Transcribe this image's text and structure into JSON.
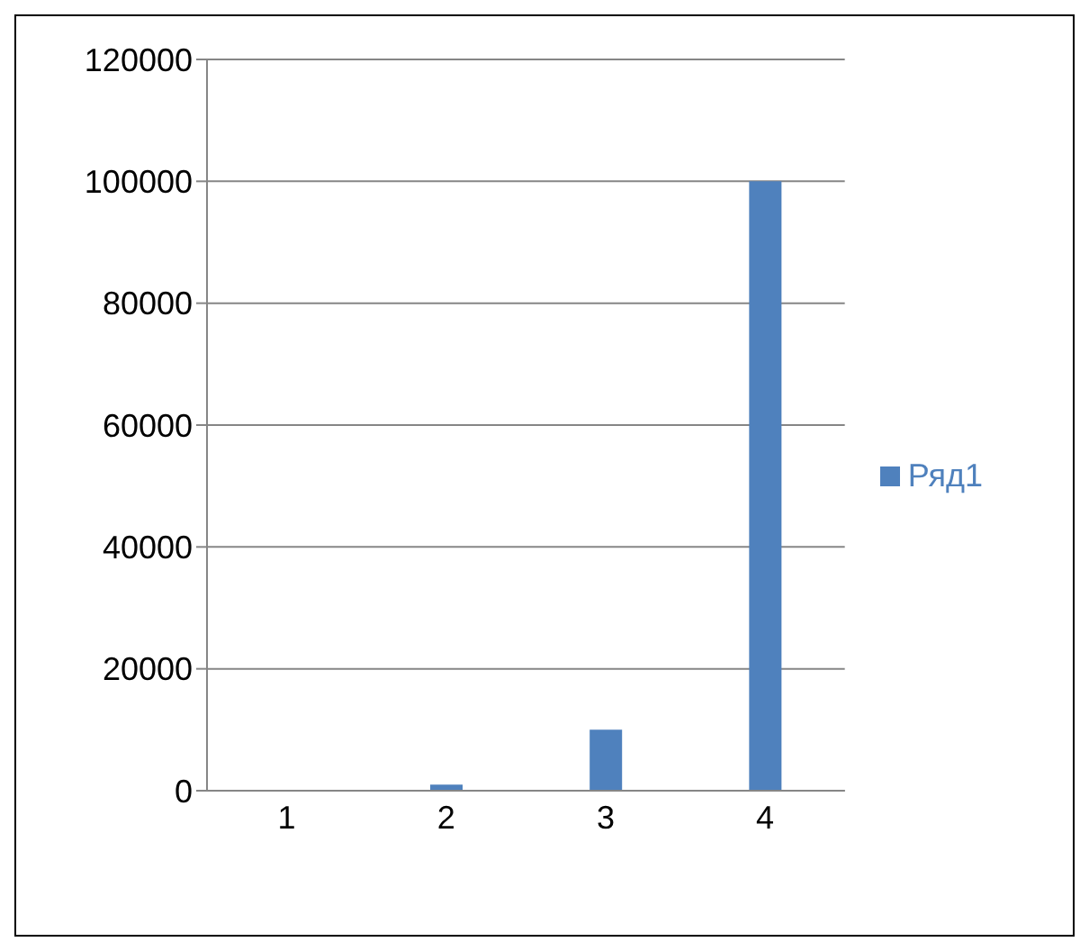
{
  "chart_data": {
    "type": "bar",
    "categories": [
      "1",
      "2",
      "3",
      "4"
    ],
    "series": [
      {
        "name": "Ряд1",
        "color": "#4f81bd",
        "values": [
          100,
          1000,
          10000,
          100000
        ]
      }
    ],
    "ylim": [
      0,
      120000
    ],
    "yticks": [
      0,
      20000,
      40000,
      60000,
      80000,
      100000,
      120000
    ],
    "grid": "y",
    "legend": "right"
  }
}
